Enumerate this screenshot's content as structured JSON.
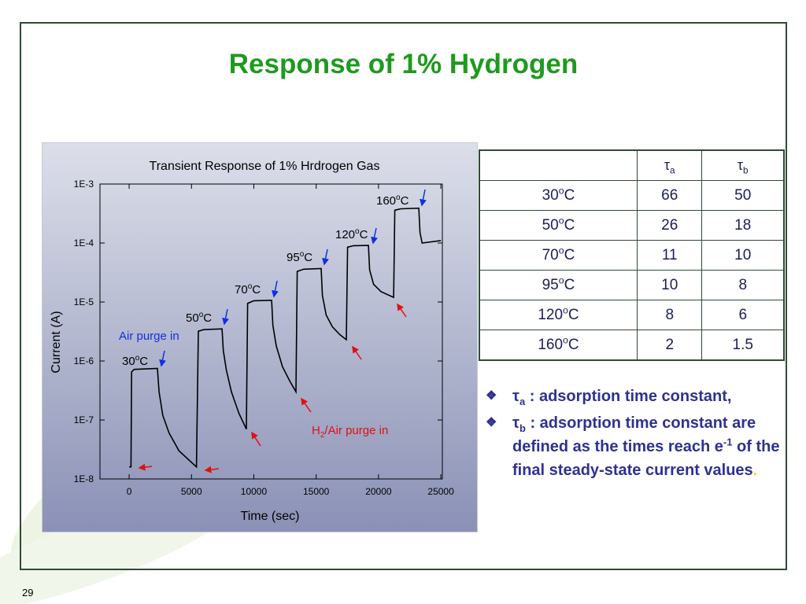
{
  "slide": {
    "title": "Response of 1% Hydrogen",
    "page_number": "29"
  },
  "chart_data": {
    "type": "line",
    "title": "Transient Response of 1% Hrdrogen Gas",
    "x_label": "Time (sec)",
    "y_label": "Current (A)",
    "color": "#000000",
    "log_y": true,
    "xlim": [
      -2340,
      25120
    ],
    "xticks": [
      0,
      5000,
      10000,
      15000,
      20000,
      25000
    ],
    "ylim": [
      1e-08,
      0.001
    ],
    "yticks": [
      {
        "value": 1e-08,
        "label": "1E-8"
      },
      {
        "value": 1e-07,
        "label": "1E-7"
      },
      {
        "value": 1e-06,
        "label": "1E-6"
      },
      {
        "value": 1e-05,
        "label": "1E-5"
      },
      {
        "value": 0.0001,
        "label": "1E-4"
      },
      {
        "value": 0.001,
        "label": "1E-3"
      }
    ],
    "x": [
      0,
      150,
      200,
      400,
      2270,
      2400,
      2700,
      3200,
      4000,
      5400,
      5550,
      6000,
      7450,
      7550,
      7800,
      8200,
      8800,
      9400,
      9500,
      10000,
      11430,
      11530,
      11800,
      12300,
      12900,
      13380,
      13480,
      14000,
      15400,
      15500,
      15800,
      16300,
      16900,
      17420,
      17520,
      18000,
      19190,
      19290,
      19600,
      20200,
      21210,
      21310,
      21800,
      23230,
      23330,
      23500,
      25000
    ],
    "values": [
      1.6e-08,
      1.6e-08,
      6.5e-07,
      7.2e-07,
      7.5e-07,
      3e-07,
      1.2e-07,
      6e-08,
      3e-08,
      1.6e-08,
      3.2e-06,
      3.4e-06,
      3.5e-06,
      1.5e-06,
      7e-07,
      3e-07,
      1.3e-07,
      7e-08,
      9.5e-06,
      1.05e-05,
      1.07e-05,
      4e-06,
      1.8e-06,
      8e-07,
      4.5e-07,
      3e-07,
      3.3e-05,
      3.6e-05,
      3.7e-05,
      1.3e-05,
      6e-06,
      3.8e-06,
      2.8e-06,
      2.3e-06,
      8.5e-05,
      9e-05,
      9.1e-05,
      3.5e-05,
      2e-05,
      1.5e-05,
      1.2e-05,
      0.00036,
      0.00038,
      0.00039,
      0.00015,
      0.0001,
      0.00011
    ],
    "annotations": [
      {
        "text": "30",
        "sup": "o",
        "unit": "C"
      },
      {
        "text": "50",
        "sup": "o",
        "unit": "C"
      },
      {
        "text": "70",
        "sup": "o",
        "unit": "C"
      },
      {
        "text": "95",
        "sup": "o",
        "unit": "C"
      },
      {
        "text": "120",
        "sup": "o",
        "unit": "C"
      },
      {
        "text": "160",
        "sup": "o",
        "unit": "C"
      },
      {
        "text": "Air purge in"
      },
      {
        "text": "H",
        "sub": "2",
        "tail": "/Air purge in"
      }
    ]
  },
  "table": {
    "header": [
      {
        "symbol": "τ",
        "sub": "a"
      },
      {
        "symbol": "τ",
        "sub": "b"
      }
    ],
    "rows": [
      {
        "temp": "30",
        "sup": "o",
        "unit": "C",
        "values": [
          66,
          50
        ]
      },
      {
        "temp": "50",
        "sup": "o",
        "unit": "C",
        "values": [
          26,
          18
        ]
      },
      {
        "temp": "70",
        "sup": "o",
        "unit": "C",
        "values": [
          11,
          10
        ]
      },
      {
        "temp": "95",
        "sup": "o",
        "unit": "C",
        "values": [
          10,
          8
        ]
      },
      {
        "temp": "120",
        "sup": "o",
        "unit": "C",
        "values": [
          8,
          6
        ]
      },
      {
        "temp": "160",
        "sup": "o",
        "unit": "C",
        "values": [
          2,
          1.5
        ]
      }
    ]
  },
  "bullets": [
    {
      "symbol": "τ",
      "sub": "a",
      "text": " : adsorption  time constant,"
    },
    {
      "symbol": "τ",
      "sub": "b",
      "text": " : adsorption  time constant are defined as the times reach e",
      "sup": "-1",
      "tail": " of the final steady-state current values",
      "end": "."
    }
  ]
}
